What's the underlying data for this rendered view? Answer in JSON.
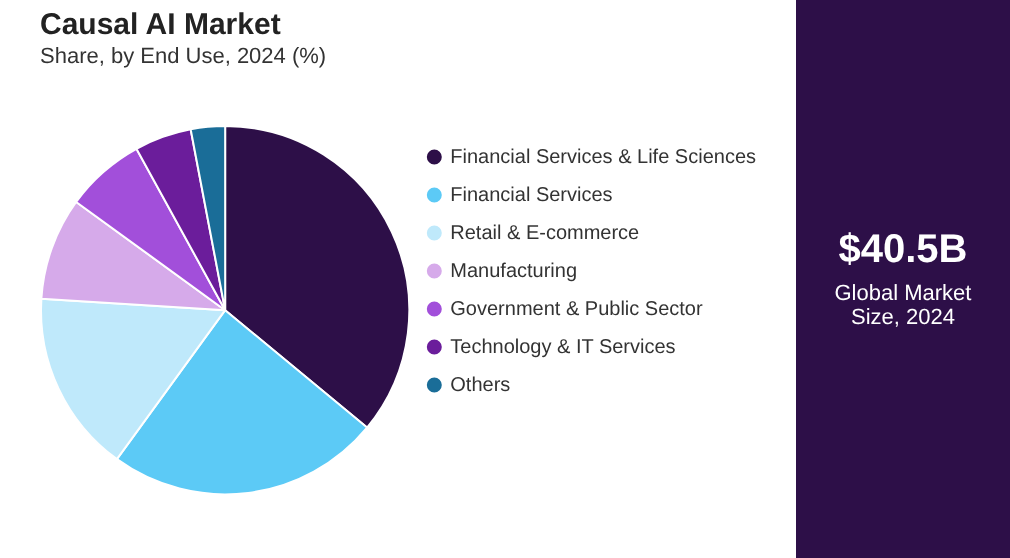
{
  "chart_data": {
    "type": "pie",
    "title": "Causal AI Market",
    "subtitle": "Share, by End Use, 2024 (%)",
    "categories": [
      "Financial Services & Life Sciences",
      "Financial Services",
      "Retail & E-commerce",
      "Manufacturing",
      "Government & Public Sector",
      "Technology & IT Services",
      "Others"
    ],
    "values": [
      36,
      24,
      16,
      9,
      7,
      5,
      3
    ],
    "colors": [
      "#2d0f48",
      "#5ccaf6",
      "#bfe9fb",
      "#d6aaea",
      "#a24fda",
      "#6b1d9b",
      "#1a6d98"
    ],
    "legend": "right",
    "annotations": [
      "$40.5B",
      "Global Market Size, 2024"
    ]
  }
}
